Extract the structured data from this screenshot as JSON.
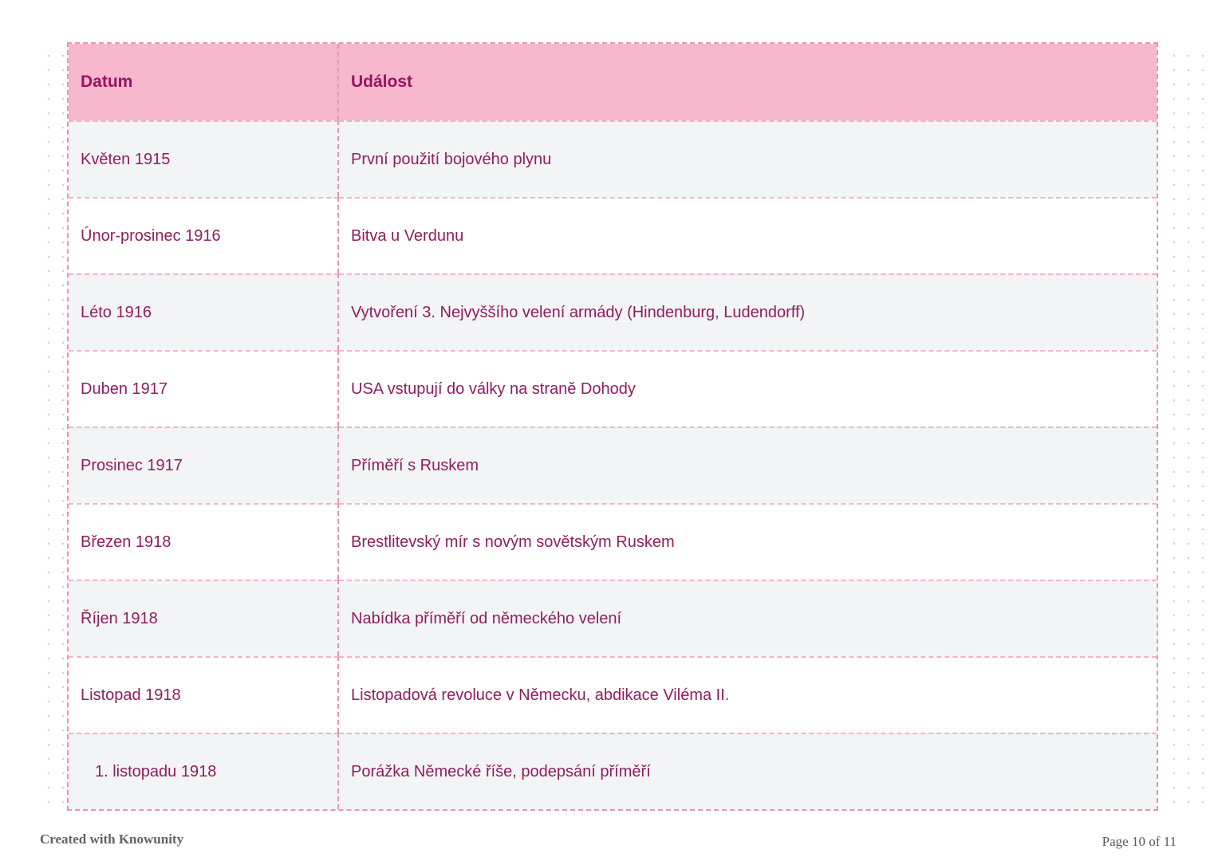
{
  "table": {
    "headers": [
      {
        "label": "Datum"
      },
      {
        "label": "Událost"
      }
    ],
    "rows": [
      {
        "date": "Květen 1915",
        "event": "První použití bojového plynu",
        "shaded": true,
        "indented": false
      },
      {
        "date": "Únor-prosinec 1916",
        "event": "Bitva u Verdunu",
        "shaded": false,
        "indented": false
      },
      {
        "date": "Léto 1916",
        "event": "Vytvoření 3. Nejvyššího velení armády (Hindenburg, Ludendorff)",
        "shaded": true,
        "indented": false
      },
      {
        "date": "Duben 1917",
        "event": "USA vstupují do války na straně Dohody",
        "shaded": false,
        "indented": false
      },
      {
        "date": "Prosinec 1917",
        "event": "Příměří s Ruskem",
        "shaded": true,
        "indented": false
      },
      {
        "date": "Březen 1918",
        "event": "Brestlitevský mír s novým sovětským Ruskem",
        "shaded": false,
        "indented": false
      },
      {
        "date": "Říjen 1918",
        "event": "Nabídka příměří od německého velení",
        "shaded": true,
        "indented": false
      },
      {
        "date": "Listopad 1918",
        "event": "Listopadová revoluce v Německu, abdikace Viléma II.",
        "shaded": false,
        "indented": false
      },
      {
        "date": "1. listopadu 1918",
        "event": "Porážka Německé říše, podepsání příměří",
        "shaded": true,
        "indented": true
      }
    ]
  },
  "footer": {
    "credit": "Created with Knowunity",
    "page": "Page 10 of 11"
  },
  "colors": {
    "header_bg": "#f7b7cc",
    "header_text": "#9c1260",
    "body_text": "#901d5f",
    "row_shaded": "#f3f4f6",
    "row_plain": "#ffffff",
    "border_vertical": "#e693b4",
    "border_horizontal": "#f1b3c8",
    "dot_grid": "#d2d5d9",
    "footer_text": "#636363"
  }
}
